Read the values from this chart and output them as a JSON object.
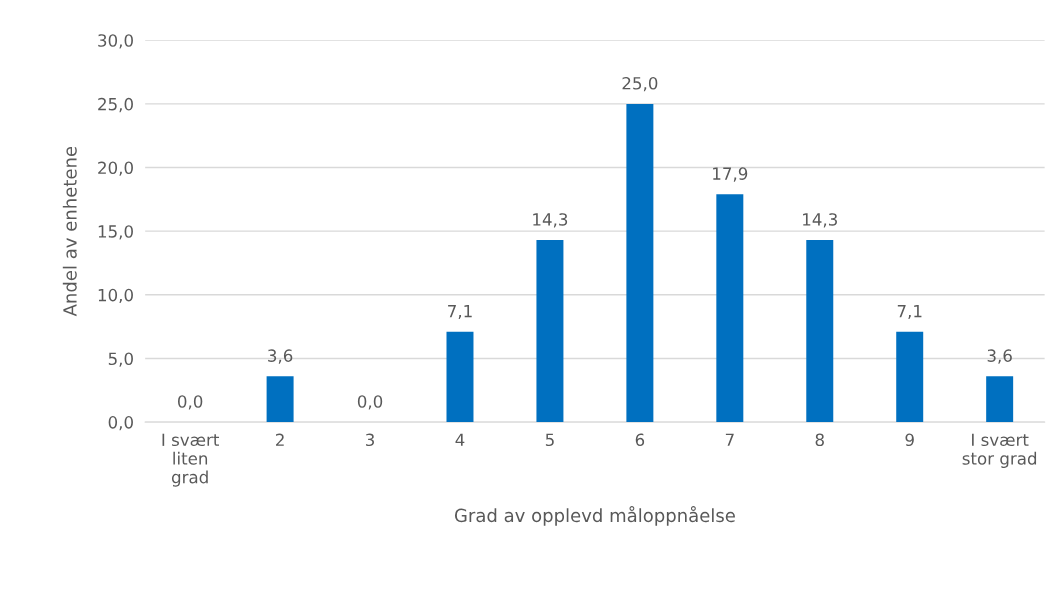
{
  "chart_data": {
    "type": "bar",
    "xlabel": "Grad av opplevd måloppnåelse",
    "ylabel": "Andel av enhetene",
    "categories": [
      "I svært\nliten\ngrad",
      "2",
      "3",
      "4",
      "5",
      "6",
      "7",
      "8",
      "9",
      "I svært\nstor grad"
    ],
    "values": [
      0.0,
      3.6,
      0.0,
      7.1,
      14.3,
      25.0,
      17.9,
      14.3,
      7.1,
      3.6
    ],
    "value_labels": [
      "0,0",
      "3,6",
      "0,0",
      "7,1",
      "14,3",
      "25,0",
      "17,9",
      "14,3",
      "7,1",
      "3,6"
    ],
    "color": "#0070c0",
    "ylim": [
      0,
      30
    ],
    "yticks": [
      {
        "value": 0,
        "label": "0,0"
      },
      {
        "value": 5,
        "label": "5,0"
      },
      {
        "value": 10,
        "label": "10,0"
      },
      {
        "value": 15,
        "label": "15,0"
      },
      {
        "value": 20,
        "label": "20,0"
      },
      {
        "value": 25,
        "label": "25,0"
      },
      {
        "value": 30,
        "label": "30,0"
      }
    ],
    "grid": "y"
  }
}
